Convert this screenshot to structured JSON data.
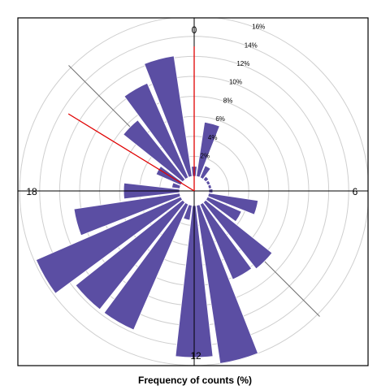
{
  "chart_data": {
    "type": "polar-bar",
    "title": "",
    "xlabel": "Frequency of counts (%)",
    "direction_labels": [
      "0",
      "6",
      "12",
      "18"
    ],
    "radial_tick_labels": [
      "2%",
      "4%",
      "6%",
      "8%",
      "10%",
      "12%",
      "14%",
      "16%"
    ],
    "radial_ticks": [
      2,
      4,
      6,
      8,
      10,
      12,
      14,
      16
    ],
    "r_max": 16.4,
    "bin_width_hours": 1,
    "hours": [
      0,
      1,
      2,
      3,
      4,
      5,
      6,
      7,
      8,
      9,
      10,
      11,
      12,
      13,
      14,
      15,
      16,
      17,
      18,
      19,
      20,
      21,
      22,
      23
    ],
    "values": [
      1.0,
      5.5,
      1.3,
      0.4,
      0.3,
      0.3,
      0.4,
      5.0,
      3.7,
      8.5,
      8.2,
      16.0,
      15.2,
      1.5,
      13.7,
      13.7,
      15.8,
      10.7,
      5.6,
      0.8,
      2.7,
      7.6,
      10.3,
      12.2
    ],
    "mean_direction_hour": 0,
    "mean_direction_length": 13.0,
    "secondary_direction_hour": 20.1,
    "secondary_direction_length": 13.3,
    "colors": {
      "bar": "#5b4ea3",
      "grid": "#cfcfcf",
      "axis": "#000000",
      "mean_line": "#e00000"
    },
    "grid": true
  }
}
